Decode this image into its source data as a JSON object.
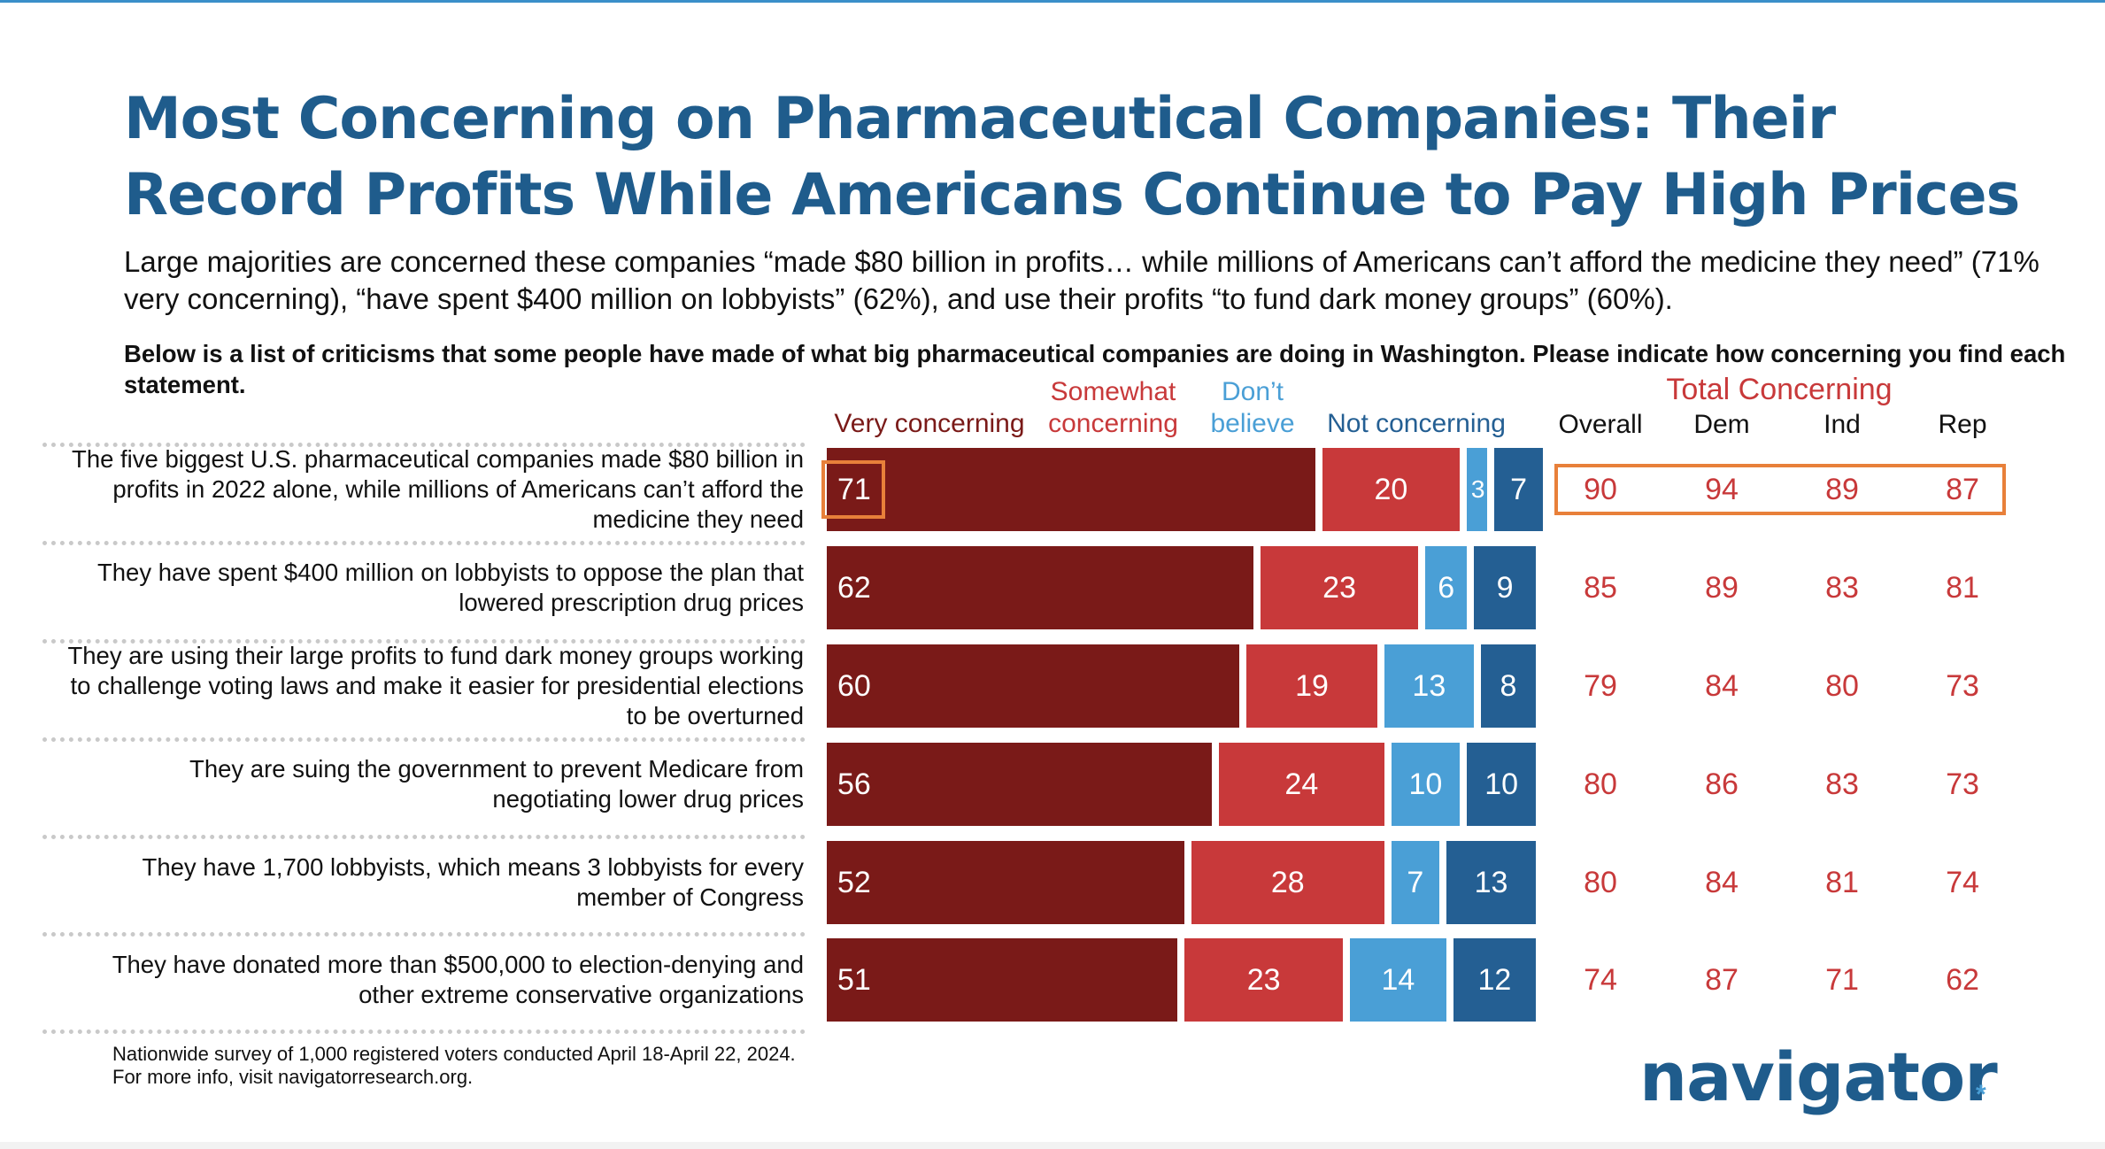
{
  "title": "Most Concerning on Pharmaceutical Companies: Their Record Profits While Americans Continue to Pay High Prices",
  "subtitle": "Large majorities are concerned these companies “made $80 billion in profits… while millions of Americans can’t afford the medicine they need” (71% very concerning), “have spent $400 million on lobbyists” (62%), and use their profits “to fund dark money groups” (60%).",
  "question": "Below is a list of criticisms that some people have made of what big pharmaceutical companies are doing in Washington. Please indicate how concerning you find each statement.",
  "headers": {
    "very": "Very concerning",
    "somewhat": "Somewhat concerning",
    "dont_believe": "Don’t believe",
    "not": "Not concerning",
    "total": "Total Concerning",
    "overall": "Overall",
    "dem": "Dem",
    "ind": "Ind",
    "rep": "Rep"
  },
  "colors": {
    "very": "#7a1a18",
    "somewhat": "#c8393a",
    "dont_believe": "#4a9fd6",
    "not": "#245f93",
    "highlight": "#e8803a",
    "title": "#1f5c8c"
  },
  "chart_data": {
    "type": "bar",
    "orientation": "horizontal-stacked",
    "categories": [
      "The five biggest U.S. pharmaceutical companies made $80 billion in profits in 2022 alone, while millions of Americans can’t afford the medicine they need",
      "They have spent $400 million on lobbyists to oppose the plan that lowered prescription drug prices",
      "They are using their large profits to fund dark money groups working to challenge voting laws and make it easier for presidential elections to be overturned",
      "They are suing the government to prevent Medicare from negotiating lower drug prices",
      "They have 1,700 lobbyists, which means 3 lobbyists for every member of Congress",
      "They have donated more than $500,000 to election-denying and other extreme conservative organizations"
    ],
    "series": [
      {
        "name": "Very concerning",
        "values": [
          71,
          62,
          60,
          56,
          52,
          51
        ]
      },
      {
        "name": "Somewhat concerning",
        "values": [
          20,
          23,
          19,
          24,
          28,
          23
        ]
      },
      {
        "name": "Don’t believe",
        "values": [
          3,
          6,
          13,
          10,
          7,
          14
        ]
      },
      {
        "name": "Not concerning",
        "values": [
          7,
          9,
          8,
          10,
          13,
          12
        ]
      }
    ],
    "total_concerning": {
      "Overall": [
        90,
        85,
        79,
        80,
        80,
        74
      ],
      "Dem": [
        94,
        89,
        84,
        86,
        84,
        87
      ],
      "Ind": [
        89,
        83,
        80,
        83,
        81,
        71
      ],
      "Rep": [
        87,
        81,
        73,
        73,
        74,
        62
      ]
    },
    "highlighted_row": 0
  },
  "footnote": {
    "line1": "Nationwide survey of 1,000 registered voters conducted April 18-April 22, 2024.",
    "line2": "For more info, visit navigatorresearch.org."
  },
  "logo": "navigator"
}
